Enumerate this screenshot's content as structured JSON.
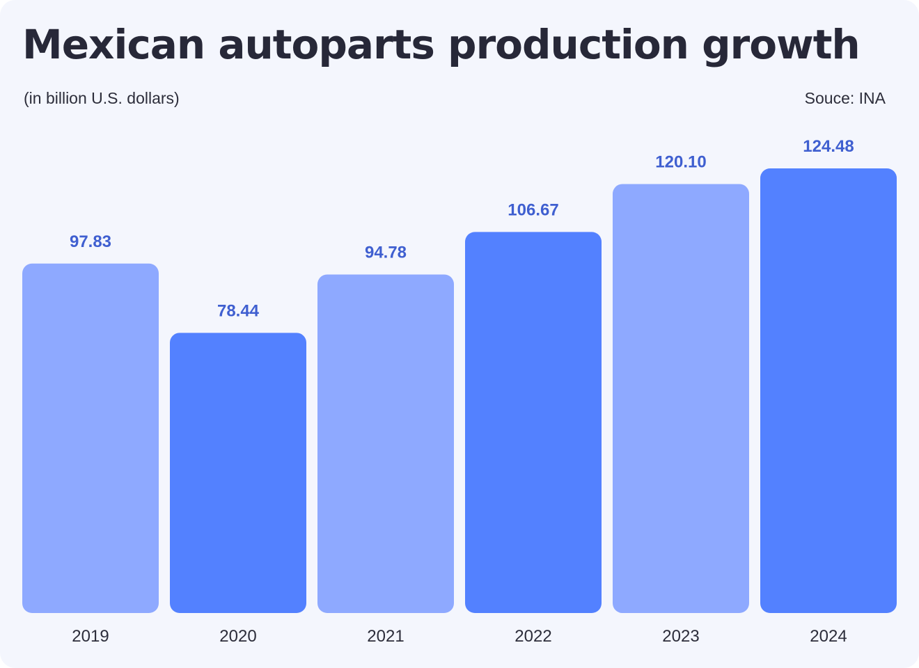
{
  "header": {
    "title": "Mexican autoparts production growth",
    "subtitle": "(in billion U.S. dollars)",
    "source": "Souce: INA"
  },
  "colors": {
    "bar_light": "#8ea9ff",
    "bar_dark": "#5381ff",
    "value_label": "#3f5fd0",
    "tick_label": "#2c2d3a"
  },
  "chart_data": {
    "type": "bar",
    "title": "Mexican autoparts production growth",
    "subtitle": "(in billion U.S. dollars)",
    "xlabel": "",
    "ylabel": "",
    "categories": [
      "2019",
      "2020",
      "2021",
      "2022",
      "2023",
      "2024"
    ],
    "values": [
      97.83,
      78.44,
      94.78,
      106.67,
      120.1,
      124.48
    ],
    "value_labels": [
      "97.83",
      "78.44",
      "94.78",
      "106.67",
      "120.10",
      "124.48"
    ],
    "bar_shades": [
      "light",
      "dark",
      "light",
      "dark",
      "light",
      "dark"
    ],
    "ylim": [
      0,
      124.48
    ],
    "grid": false,
    "legend": "none"
  }
}
